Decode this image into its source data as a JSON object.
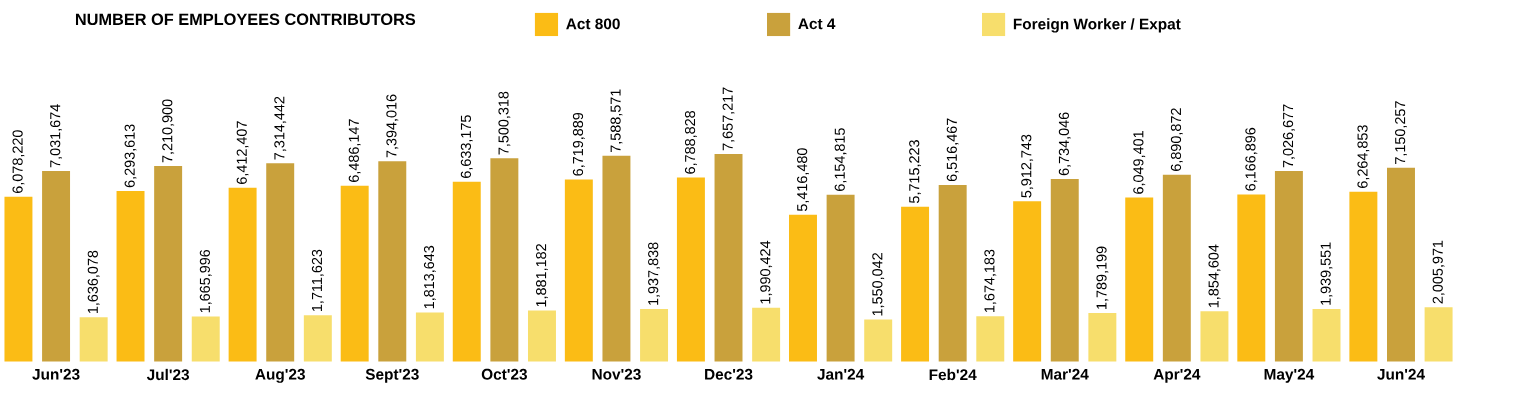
{
  "chart_data": {
    "type": "bar",
    "title": "NUMBER OF EMPLOYEES CONTRIBUTORS",
    "categories": [
      "Jun'23",
      "Jul'23",
      "Aug'23",
      "Sept'23",
      "Oct'23",
      "Nov'23",
      "Dec'23",
      "Jan'24",
      "Feb'24",
      "Mar'24",
      "Apr'24",
      "May'24",
      "Jun'24"
    ],
    "series": [
      {
        "name": "Act 800",
        "color": "#fbbc15",
        "values": [
          6078220,
          6293613,
          6412407,
          6486147,
          6633175,
          6719889,
          6788828,
          5416480,
          5715223,
          5912743,
          6049401,
          6166896,
          6264853
        ],
        "value_labels": [
          "6,078,220",
          "6,293,613",
          "6,412,407",
          "6,486,147",
          "6,633,175",
          "6,719,889",
          "6,788,828",
          "5,416,480",
          "5,715,223",
          "5,912,743",
          "6,049,401",
          "6,166,896",
          "6,264,853"
        ]
      },
      {
        "name": "Act 4",
        "color": "#c9a13c",
        "values": [
          7031674,
          7210900,
          7314442,
          7394016,
          7500318,
          7588571,
          7657217,
          6154815,
          6516467,
          6734046,
          6890872,
          7026677,
          7150257
        ],
        "value_labels": [
          "7,031,674",
          "7,210,900",
          "7,314,442",
          "7,394,016",
          "7,500,318",
          "7,588,571",
          "7,657,217",
          "6,154,815",
          "6,516,467",
          "6,734,046",
          "6,890,872",
          "7,026,677",
          "7,150,257"
        ]
      },
      {
        "name": "Foreign Worker / Expat",
        "color": "#f7de6c",
        "values": [
          1636078,
          1665996,
          1711623,
          1813643,
          1881182,
          1937838,
          1990424,
          1550042,
          1674183,
          1789199,
          1854604,
          1939551,
          2005971
        ],
        "value_labels": [
          "1,636,078",
          "1,665,996",
          "1,711,623",
          "1,813,643",
          "1,881,182",
          "1,937,838",
          "1,990,424",
          "1,550,042",
          "1,674,183",
          "1,789,199",
          "1,854,604",
          "1,939,551",
          "2,005,971"
        ]
      }
    ],
    "tick_labels": "x",
    "legend": "top"
  }
}
